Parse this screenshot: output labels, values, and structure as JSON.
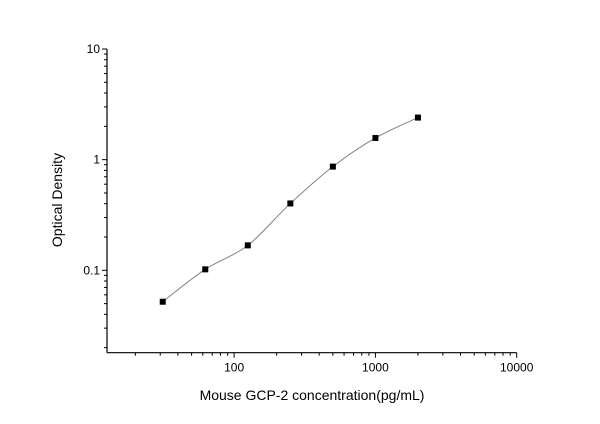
{
  "chart_data": {
    "type": "scatter",
    "title": "",
    "xlabel": "Mouse GCP-2 concentration(pg/mL)",
    "ylabel": "Optical Density",
    "x_scale": "log",
    "y_scale": "log",
    "xlim": [
      12.6,
      10000
    ],
    "ylim": [
      0.018,
      10
    ],
    "x_ticks": [
      {
        "value": 100,
        "label": "100"
      },
      {
        "value": 1000,
        "label": "1000"
      },
      {
        "value": 10000,
        "label": "10000"
      }
    ],
    "y_ticks": [
      {
        "value": 0.1,
        "label": "0.1"
      },
      {
        "value": 1,
        "label": "1"
      },
      {
        "value": 10,
        "label": "10"
      }
    ],
    "grid": false,
    "fit_curve": true,
    "colors": {
      "points": "#000000",
      "curve": "#808080",
      "axis": "#000000"
    },
    "x": [
      31.25,
      62.5,
      125,
      250,
      500,
      1000,
      2000
    ],
    "y": [
      0.052,
      0.102,
      0.168,
      0.402,
      0.865,
      1.57,
      2.4
    ]
  }
}
